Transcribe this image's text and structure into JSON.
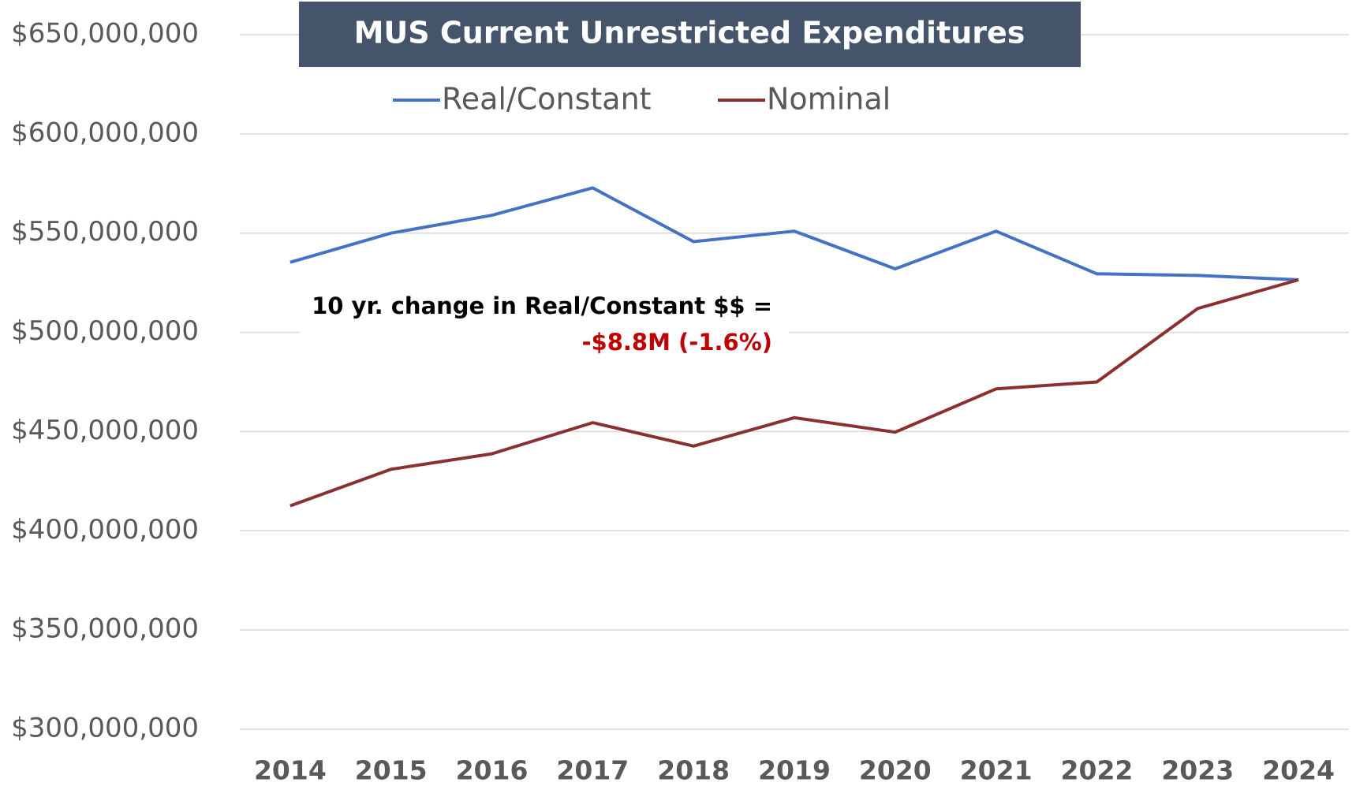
{
  "chart_data": {
    "type": "line",
    "title": "MUS Current Unrestricted Expenditures",
    "categories": [
      "2014",
      "2015",
      "2016",
      "2017",
      "2018",
      "2019",
      "2020",
      "2021",
      "2022",
      "2023",
      "2024"
    ],
    "series": [
      {
        "name": "Real/Constant",
        "color": "#4472c4",
        "values": [
          535.3,
          550,
          559,
          572.8,
          545.7,
          551,
          532,
          551,
          529.5,
          528.7,
          526.5
        ]
      },
      {
        "name": "Nominal",
        "color": "#8b2f2f",
        "values": [
          412.6,
          431,
          438.8,
          454.5,
          442.7,
          457,
          449.7,
          471.5,
          475,
          512,
          526.5
        ]
      }
    ],
    "ylim": [
      300,
      650
    ],
    "yticks": [
      {
        "value": 300,
        "label": "$300,000,000"
      },
      {
        "value": 350,
        "label": "$350,000,000"
      },
      {
        "value": 400,
        "label": "$400,000,000"
      },
      {
        "value": 450,
        "label": "$450,000,000"
      },
      {
        "value": 500,
        "label": "$500,000,000"
      },
      {
        "value": 550,
        "label": "$550,000,000"
      },
      {
        "value": 600,
        "label": "$600,000,000"
      },
      {
        "value": 650,
        "label": "$650,000,000"
      }
    ],
    "grid": true,
    "legend": "top",
    "annotations": [
      "10 yr. change in Real/Constant $$  =",
      "-$8.8M (-1.6%)"
    ]
  }
}
